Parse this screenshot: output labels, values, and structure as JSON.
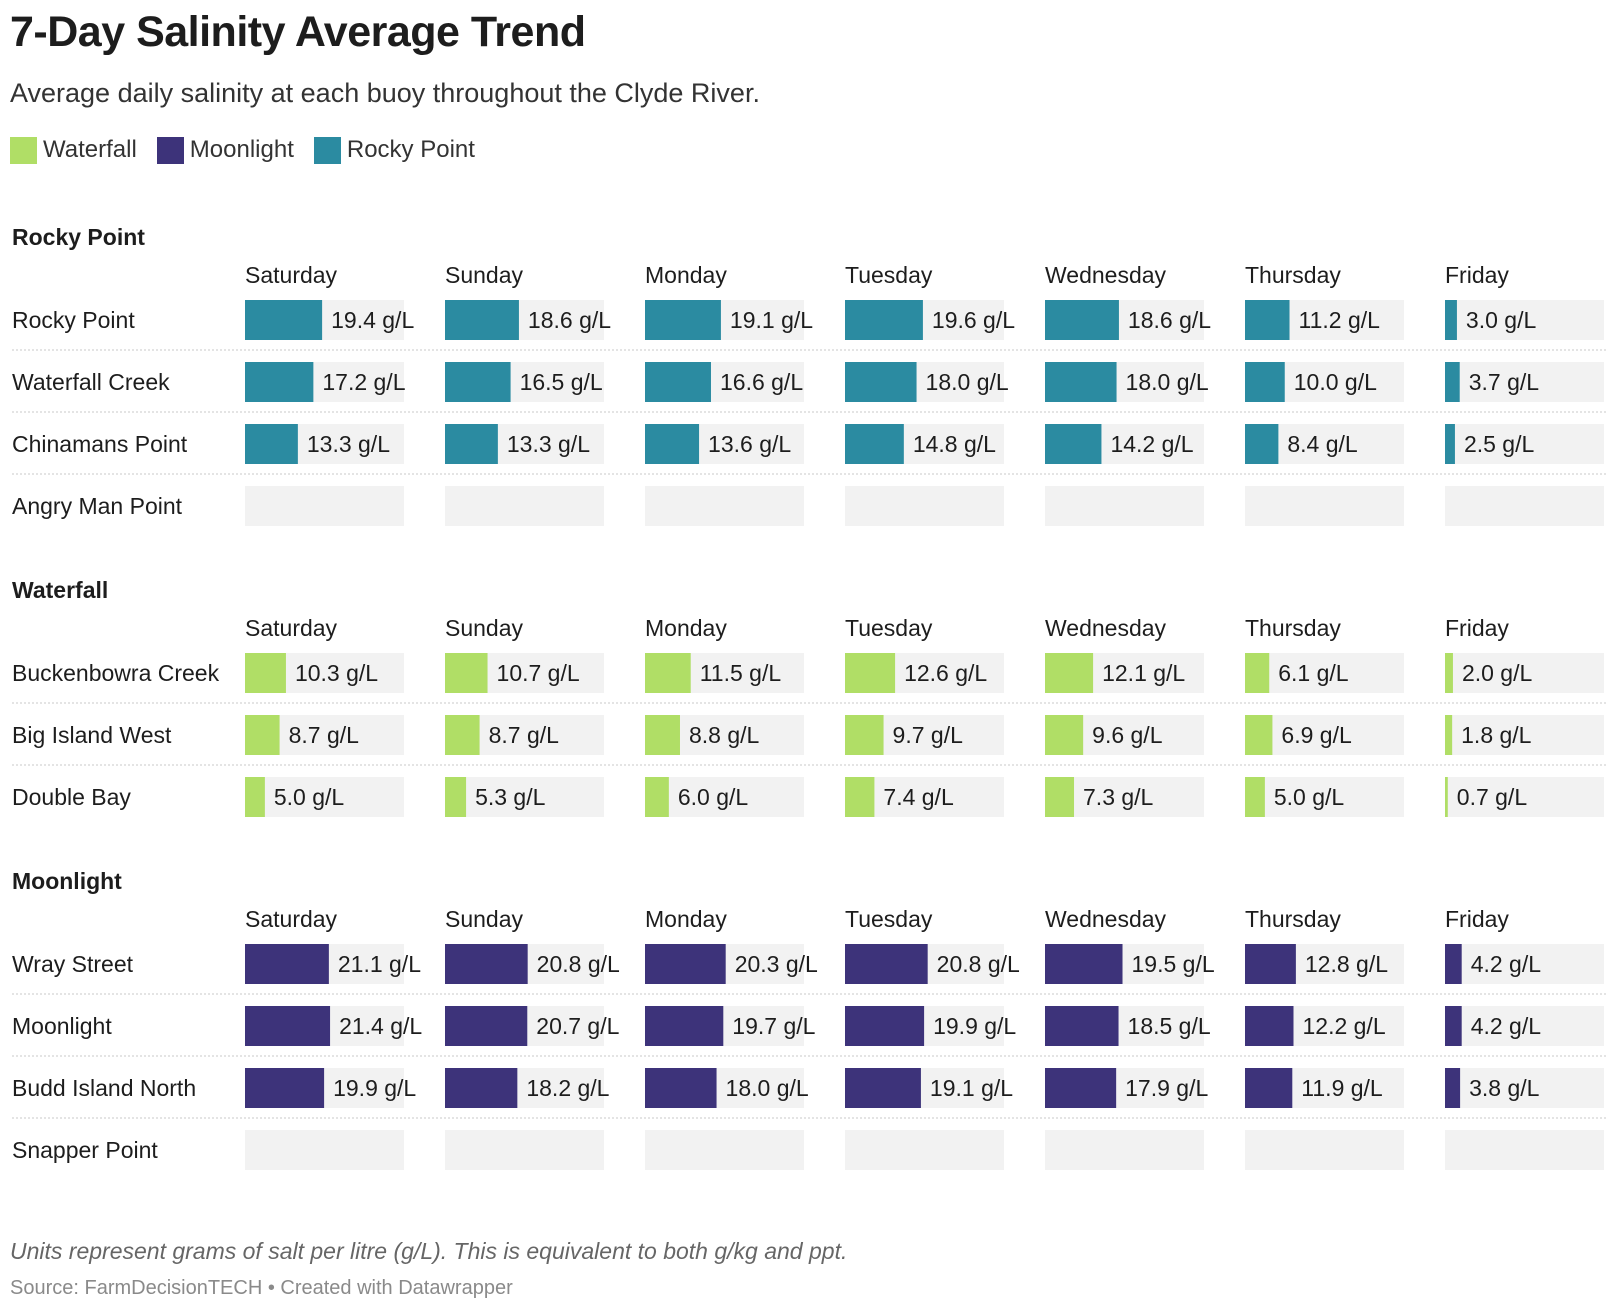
{
  "header": {
    "title": "7-Day Salinity Average Trend",
    "subtitle": "Average daily salinity at each buoy throughout the Clyde River."
  },
  "legend": [
    {
      "name": "Waterfall",
      "color": "#b0de66"
    },
    {
      "name": "Moonlight",
      "color": "#3d337a"
    },
    {
      "name": "Rocky Point",
      "color": "#2b8ba1"
    }
  ],
  "footer": {
    "note": "Units represent grams of salt per litre (g/L). This is equivalent to both g/kg and ppt.",
    "source": "Source: FarmDecisionTECH • Created with Datawrapper"
  },
  "chart_data": {
    "type": "bar",
    "unit": "g/L",
    "days": [
      "Saturday",
      "Sunday",
      "Monday",
      "Tuesday",
      "Wednesday",
      "Thursday",
      "Friday"
    ],
    "xlim": [
      0,
      40
    ],
    "track_color": "#f2f2f2",
    "groups": [
      {
        "name": "Rocky Point",
        "color": "#2b8ba1",
        "rows": [
          {
            "name": "Rocky Point",
            "values": [
              19.4,
              18.6,
              19.1,
              19.6,
              18.6,
              11.2,
              3.0
            ]
          },
          {
            "name": "Waterfall Creek",
            "values": [
              17.2,
              16.5,
              16.6,
              18.0,
              18.0,
              10.0,
              3.7
            ]
          },
          {
            "name": "Chinamans Point",
            "values": [
              13.3,
              13.3,
              13.6,
              14.8,
              14.2,
              8.4,
              2.5
            ]
          },
          {
            "name": "Angry Man Point",
            "values": [
              null,
              null,
              null,
              null,
              null,
              null,
              null
            ]
          }
        ]
      },
      {
        "name": "Waterfall",
        "color": "#b0de66",
        "rows": [
          {
            "name": "Buckenbowra Creek",
            "values": [
              10.3,
              10.7,
              11.5,
              12.6,
              12.1,
              6.1,
              2.0
            ]
          },
          {
            "name": "Big Island West",
            "values": [
              8.7,
              8.7,
              8.8,
              9.7,
              9.6,
              6.9,
              1.8
            ]
          },
          {
            "name": "Double Bay",
            "values": [
              5.0,
              5.3,
              6.0,
              7.4,
              7.3,
              5.0,
              0.7
            ]
          }
        ]
      },
      {
        "name": "Moonlight",
        "color": "#3d337a",
        "rows": [
          {
            "name": "Wray Street",
            "values": [
              21.1,
              20.8,
              20.3,
              20.8,
              19.5,
              12.8,
              4.2
            ]
          },
          {
            "name": "Moonlight",
            "values": [
              21.4,
              20.7,
              19.7,
              19.9,
              18.5,
              12.2,
              4.2
            ]
          },
          {
            "name": "Budd Island North",
            "values": [
              19.9,
              18.2,
              18.0,
              19.1,
              17.9,
              11.9,
              3.8
            ]
          },
          {
            "name": "Snapper Point",
            "values": [
              null,
              null,
              null,
              null,
              null,
              null,
              null
            ]
          }
        ]
      }
    ]
  }
}
